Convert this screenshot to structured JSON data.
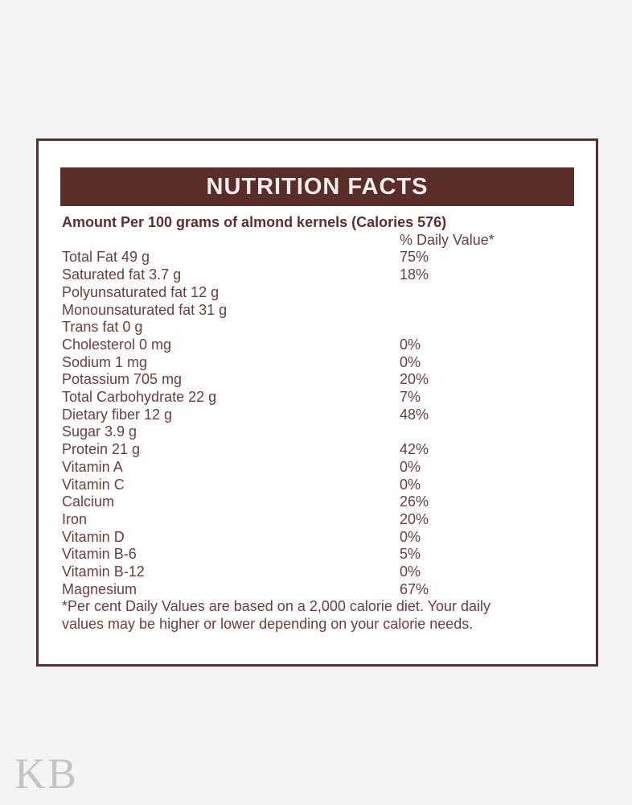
{
  "page": {
    "watermark": "KB",
    "background_color": "#f5f4f4"
  },
  "label": {
    "title": "NUTRITION FACTS",
    "subtitle": "Amount Per 100 grams of almond kernels (Calories 576)",
    "daily_value_header": "% Daily Value*",
    "rows": [
      {
        "name": "Total Fat 49 g",
        "dv": "75%"
      },
      {
        "name": "Saturated fat 3.7 g",
        "dv": "18%"
      },
      {
        "name": "Polyunsaturated fat 12 g",
        "dv": ""
      },
      {
        "name": "Monounsaturated fat 31 g",
        "dv": ""
      },
      {
        "name": "Trans fat 0 g",
        "dv": ""
      },
      {
        "name": "Cholesterol 0 mg",
        "dv": "0%"
      },
      {
        "name": "Sodium 1 mg",
        "dv": "0%"
      },
      {
        "name": "Potassium 705 mg",
        "dv": "20%"
      },
      {
        "name": "Total Carbohydrate 22 g",
        "dv": "7%"
      },
      {
        "name": "Dietary fiber 12 g",
        "dv": "48%"
      },
      {
        "name": "Sugar 3.9 g",
        "dv": ""
      },
      {
        "name": "Protein 21 g",
        "dv": "42%"
      },
      {
        "name": "Vitamin A",
        "dv": "0%"
      },
      {
        "name": "Vitamin C",
        "dv": "0%"
      },
      {
        "name": "Calcium",
        "dv": "26%"
      },
      {
        "name": "Iron",
        "dv": "20%"
      },
      {
        "name": "Vitamin D",
        "dv": "0%"
      },
      {
        "name": "Vitamin B-6",
        "dv": "5%"
      },
      {
        "name": "Vitamin B-12",
        "dv": "0%"
      },
      {
        "name": "Magnesium",
        "dv": "67%"
      }
    ],
    "footnote_lines": [
      "*Per cent Daily Values are based on a 2,000 calorie diet. Your daily",
      "values may be higher or lower depending on your calorie needs."
    ],
    "colors": {
      "brand_brown": "#5a2d2a",
      "border_brown": "#5d2c2b",
      "text_brown": "#6b3e3c",
      "watermark_gray": "#c5c5c7"
    }
  }
}
